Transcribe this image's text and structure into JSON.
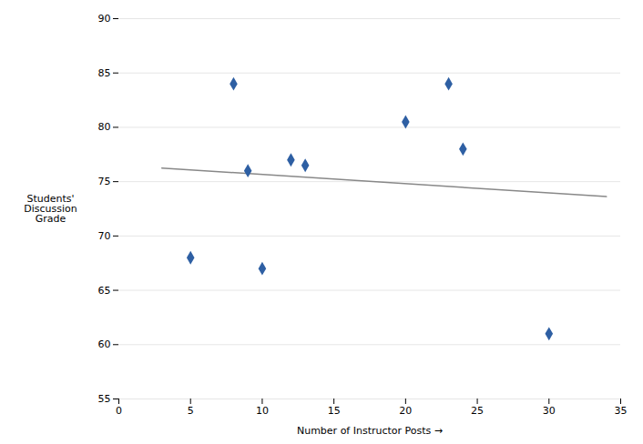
{
  "chart_data": {
    "type": "scatter",
    "xlabel": "Number of Instructor Posts",
    "ylabel": "Students'\nDiscussion\nGrade",
    "series": [
      {
        "type": "scatter",
        "x": [
          5,
          8,
          9,
          10,
          12,
          13,
          20,
          23,
          24,
          30
        ],
        "values": [
          68,
          84,
          76,
          67,
          77,
          76.5,
          80.5,
          84,
          78,
          61
        ],
        "color": "#2E5FA3",
        "marker": "diamond"
      },
      {
        "type": "line",
        "x": [
          3,
          34
        ],
        "values": [
          76.2521,
          73.6218
        ],
        "color": "#888888"
      }
    ],
    "xlim": [
      0,
      35
    ],
    "ylim": [
      55,
      90
    ],
    "xticks": [
      0,
      5,
      10,
      15,
      20,
      25,
      30,
      35
    ],
    "yticks": [
      55,
      60,
      65,
      70,
      75,
      80,
      85,
      90
    ],
    "grid": "y",
    "background_color": "#ffffff"
  }
}
